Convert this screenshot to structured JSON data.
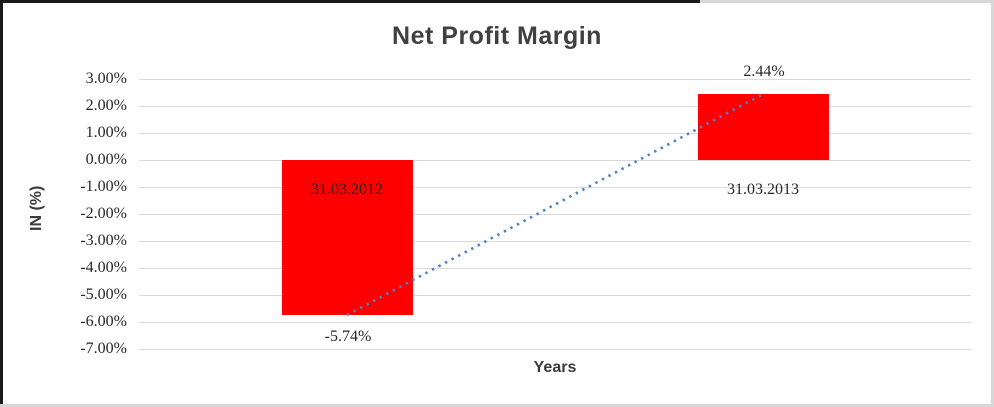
{
  "chart_data": {
    "type": "bar",
    "title": "Net Profit Margin",
    "xlabel": "Years",
    "ylabel": "IN (%)",
    "categories": [
      "31.03.2012",
      "31.03.2013"
    ],
    "values": [
      -5.74,
      2.44
    ],
    "data_labels": [
      "-5.74%",
      "2.44%"
    ],
    "yticks": [
      3,
      2,
      1,
      0,
      -1,
      -2,
      -3,
      -4,
      -5,
      -6,
      -7
    ],
    "ytick_labels": [
      "3.00%",
      "2.00%",
      "1.00%",
      "0.00%",
      "-1.00%",
      "-2.00%",
      "-3.00%",
      "-4.00%",
      "-5.00%",
      "-6.00%",
      "-7.00%"
    ],
    "ylim": [
      -7,
      3
    ],
    "grid": true,
    "legend": "none",
    "bar_color": "#ff0000",
    "gridline_color": "#d9d9d9",
    "label_color": "#262626",
    "title_color": "#404040",
    "trendline": {
      "type": "linear",
      "style": "dotted",
      "color": "#4a82c4",
      "from_value": -5.74,
      "to_value": 2.44
    }
  }
}
